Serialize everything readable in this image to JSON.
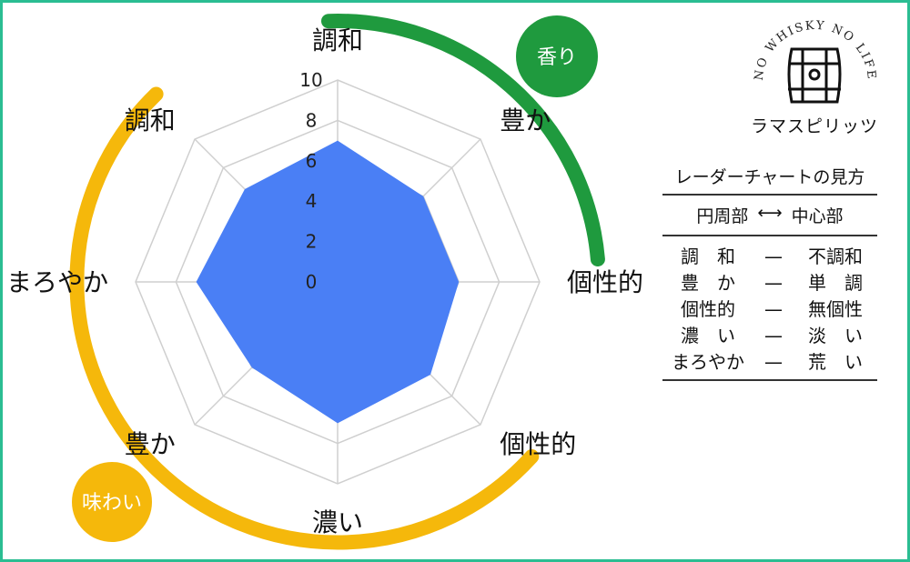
{
  "chart_data": {
    "type": "radar",
    "ylim": [
      0,
      10
    ],
    "tick_labels": [
      "0",
      "2",
      "4",
      "6",
      "8",
      "10"
    ],
    "axes": [
      "調和",
      "豊か",
      "個性的",
      "個性的",
      "濃い",
      "豊か",
      "まろやか",
      "調和"
    ],
    "values": [
      7,
      6,
      6,
      6.5,
      7,
      6,
      7,
      6.5
    ],
    "fill_color": "#4a7ff5",
    "grid_color": "#cfcfcf",
    "groups": [
      {
        "name": "香り",
        "axes": [
          "調和",
          "豊か",
          "個性的"
        ],
        "color": "#1f9a3e"
      },
      {
        "name": "味わい",
        "axes": [
          "個性的",
          "濃い",
          "豊か",
          "まろやか",
          "調和"
        ],
        "color": "#f5b80b"
      }
    ]
  },
  "logo": {
    "arc_text": "NO WHISKY NO LIFE",
    "bottom_text": "ラマスピリッツ",
    "icon": "barrel-icon"
  },
  "legend": {
    "title": "レーダーチャートの見方",
    "axis_left": "円周部",
    "axis_arrow": "⟷",
    "axis_right": "中心部",
    "rows": [
      {
        "left": "調　和",
        "dash": "—",
        "right": "不調和"
      },
      {
        "left": "豊　か",
        "dash": "—",
        "right": "単　調"
      },
      {
        "left": "個性的",
        "dash": "—",
        "right": "無個性"
      },
      {
        "left": "濃　い",
        "dash": "—",
        "right": "淡　い"
      },
      {
        "left": "まろやか",
        "dash": "—",
        "right": "荒　い"
      }
    ]
  },
  "colors": {
    "border": "#2bbd92",
    "kaori": "#1f9a3e",
    "ajiwai": "#f5b80b",
    "fill": "#4a7ff5"
  }
}
